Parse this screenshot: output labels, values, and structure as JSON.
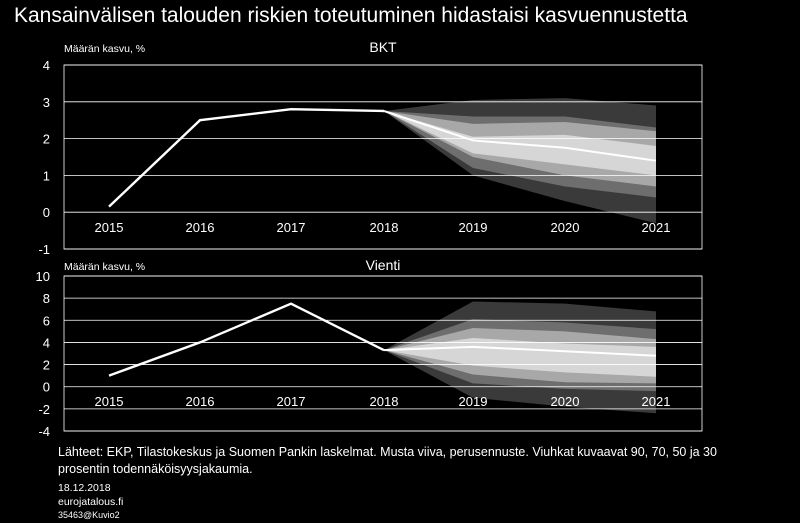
{
  "title": "Kansainvälisen talouden riskien toteutuminen hidastaisi kasvuennustetta",
  "chart_data": [
    {
      "type": "line",
      "title": "BKT",
      "ylabel": "Määrän kasvu,  %",
      "ylim": [
        -1,
        4
      ],
      "yticks": [
        -1,
        0,
        1,
        2,
        3,
        4
      ],
      "categories": [
        "2015",
        "2016",
        "2017",
        "2018",
        "2019",
        "2020",
        "2021"
      ],
      "series": [
        {
          "values": [
            0.15,
            2.5,
            2.8,
            2.75,
            1.95,
            1.75,
            1.4
          ]
        }
      ],
      "fan": {
        "start": 2.75,
        "bands": [
          {
            "level": "90",
            "lower": [
              1.0,
              0.3,
              -0.3
            ],
            "upper": [
              3.05,
              3.1,
              2.9
            ]
          },
          {
            "level": "70",
            "lower": [
              1.2,
              0.7,
              0.4
            ],
            "upper": [
              2.6,
              2.6,
              2.3
            ]
          },
          {
            "level": "50",
            "lower": [
              1.5,
              1.0,
              0.7
            ],
            "upper": [
              2.4,
              2.45,
              2.2
            ]
          },
          {
            "level": "30",
            "lower": [
              1.6,
              1.3,
              1.0
            ],
            "upper": [
              2.05,
              2.1,
              1.8
            ]
          }
        ]
      }
    },
    {
      "type": "line",
      "title": "Vienti",
      "ylabel": "Määrän kasvu,  %",
      "ylim": [
        -4,
        10
      ],
      "yticks": [
        -4,
        -2,
        0,
        2,
        4,
        6,
        8,
        10
      ],
      "categories": [
        "2015",
        "2016",
        "2017",
        "2018",
        "2019",
        "2020",
        "2021"
      ],
      "series": [
        {
          "values": [
            1.0,
            4.0,
            7.5,
            3.3,
            3.6,
            3.2,
            2.8
          ]
        }
      ],
      "fan": {
        "start": 3.3,
        "bands": [
          {
            "level": "90",
            "lower": [
              -1.0,
              -1.8,
              -2.4
            ],
            "upper": [
              7.7,
              7.5,
              6.8
            ]
          },
          {
            "level": "70",
            "lower": [
              0.3,
              -0.2,
              -0.4
            ],
            "upper": [
              6.1,
              5.8,
              5.2
            ]
          },
          {
            "level": "50",
            "lower": [
              1.1,
              0.4,
              0.3
            ],
            "upper": [
              5.3,
              5.0,
              4.3
            ]
          },
          {
            "level": "30",
            "lower": [
              1.9,
              1.3,
              0.9
            ],
            "upper": [
              4.4,
              3.9,
              3.6
            ]
          }
        ]
      }
    }
  ],
  "footer": {
    "source": "Lähteet: EKP, Tilastokeskus ja Suomen Pankin laskelmat. Musta viiva, perusennuste. Viuhkat kuvaavat 90, 70, 50 ja 30 prosentin todennäköisyysjakaumia.",
    "date": "18.12.2018",
    "site": "eurojatalous.fi",
    "code": "35463@Kuvio2"
  },
  "colors": {
    "background": "#000000",
    "line": "#ffffff",
    "grid": "#ffffff",
    "fan": [
      "#3a3a3a",
      "#6e6e6e",
      "#a8a8a8",
      "#d6d6d6"
    ],
    "central": "#ffffff"
  }
}
